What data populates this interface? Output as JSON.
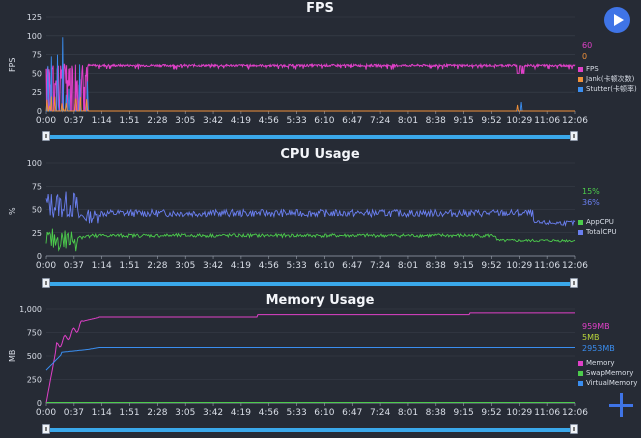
{
  "time_ticks": [
    "0:00",
    "0:37",
    "1:14",
    "1:51",
    "2:28",
    "3:05",
    "3:42",
    "4:19",
    "4:56",
    "5:33",
    "6:10",
    "6:47",
    "7:24",
    "8:01",
    "8:38",
    "9:15",
    "9:52",
    "10:29",
    "11:06",
    "12:06"
  ],
  "fps": {
    "title": "FPS",
    "ylabel": "FPS",
    "y_ticks": [
      "0",
      "25",
      "50",
      "75",
      "100",
      "125"
    ],
    "current_values": [
      {
        "text": "60",
        "color": "#e040c8"
      },
      {
        "text": "0",
        "color": "#f0913a"
      }
    ],
    "legend": [
      {
        "label": "FPS",
        "color": "#e040c8"
      },
      {
        "label": "Jank(卡顿次数)",
        "color": "#f0913a"
      },
      {
        "label": "Stutter(卡顿率)",
        "color": "#3a8ef0"
      }
    ]
  },
  "cpu": {
    "title": "CPU Usage",
    "ylabel": "%",
    "y_ticks": [
      "0",
      "25",
      "50",
      "75",
      "100"
    ],
    "current_values": [
      {
        "text": "15%",
        "color": "#4ccc4c"
      },
      {
        "text": "36%",
        "color": "#6a7ff0"
      }
    ],
    "legend": [
      {
        "label": "AppCPU",
        "color": "#4ccc4c"
      },
      {
        "label": "TotalCPU",
        "color": "#6a7ff0"
      }
    ]
  },
  "memory": {
    "title": "Memory Usage",
    "ylabel": "MB",
    "y_ticks": [
      "0",
      "250",
      "500",
      "750",
      "1,000"
    ],
    "current_values": [
      {
        "text": "959MB",
        "color": "#e040c8"
      },
      {
        "text": "5MB",
        "color": "#b9d63a"
      },
      {
        "text": "2953MB",
        "color": "#3a8ef0"
      }
    ],
    "legend": [
      {
        "label": "Memory",
        "color": "#e040c8"
      },
      {
        "label": "SwapMemory",
        "color": "#4ccc4c"
      },
      {
        "label": "VirtualMemory",
        "color": "#3a8ef0"
      }
    ]
  },
  "icons": {
    "play": "play-icon",
    "add": "plus-icon"
  }
}
